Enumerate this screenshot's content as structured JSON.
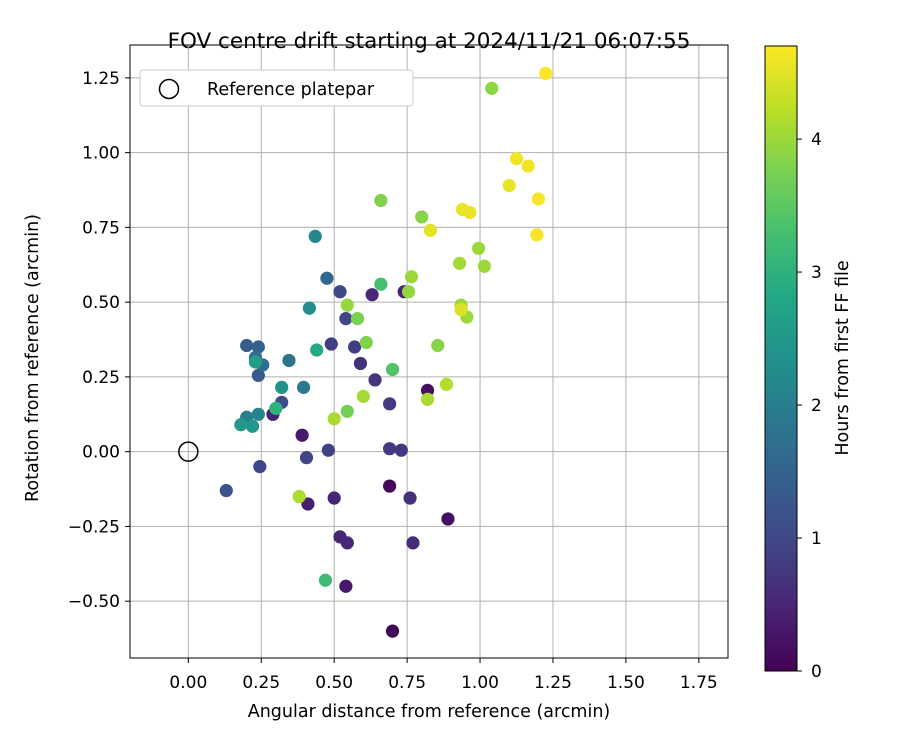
{
  "chart_data": {
    "type": "scatter",
    "title": "FOV centre drift starting at 2024/11/21 06:07:55",
    "xlabel": "Angular distance from reference (arcmin)",
    "ylabel": "Rotation from reference (arcmin)",
    "xlim": [
      -0.2,
      1.85
    ],
    "ylim": [
      -0.69,
      1.36
    ],
    "xticks": [
      0.0,
      0.25,
      0.5,
      0.75,
      1.0,
      1.25,
      1.5,
      1.75
    ],
    "xtick_labels": [
      "0.00",
      "0.25",
      "0.50",
      "0.75",
      "1.00",
      "1.25",
      "1.50",
      "1.75"
    ],
    "yticks": [
      -0.5,
      -0.25,
      0.0,
      0.25,
      0.5,
      0.75,
      1.0,
      1.25
    ],
    "ytick_labels": [
      "−0.50",
      "−0.25",
      "0.00",
      "0.25",
      "0.50",
      "0.75",
      "1.00",
      "1.25"
    ],
    "grid": true,
    "legend": {
      "position": "top-left",
      "label": "Reference platepar",
      "marker": "open-circle"
    },
    "reference_point": {
      "x": 0.0,
      "y": 0.0
    },
    "colorbar": {
      "label": "Hours from first FF file",
      "colormap": "viridis",
      "range": [
        0,
        4.7
      ],
      "ticks": [
        0,
        1,
        2,
        3,
        4
      ],
      "tick_labels": [
        "0",
        "1",
        "2",
        "3",
        "4"
      ]
    },
    "points": [
      {
        "x": 0.7,
        "y": -0.6,
        "c": 0.05
      },
      {
        "x": 0.69,
        "y": -0.115,
        "c": 0.1
      },
      {
        "x": 0.89,
        "y": -0.225,
        "c": 0.2
      },
      {
        "x": 0.82,
        "y": 0.205,
        "c": 0.2
      },
      {
        "x": 0.54,
        "y": -0.45,
        "c": 0.3
      },
      {
        "x": 0.39,
        "y": 0.055,
        "c": 0.35
      },
      {
        "x": 0.41,
        "y": -0.175,
        "c": 0.4
      },
      {
        "x": 0.29,
        "y": 0.125,
        "c": 0.45
      },
      {
        "x": 0.74,
        "y": 0.535,
        "c": 0.45
      },
      {
        "x": 0.5,
        "y": -0.155,
        "c": 0.5
      },
      {
        "x": 0.52,
        "y": -0.285,
        "c": 0.5
      },
      {
        "x": 0.545,
        "y": -0.305,
        "c": 0.55
      },
      {
        "x": 0.63,
        "y": 0.525,
        "c": 0.55
      },
      {
        "x": 0.77,
        "y": -0.305,
        "c": 0.6
      },
      {
        "x": 0.76,
        "y": -0.155,
        "c": 0.65
      },
      {
        "x": 0.59,
        "y": 0.295,
        "c": 0.65
      },
      {
        "x": 0.64,
        "y": 0.24,
        "c": 0.7
      },
      {
        "x": 0.73,
        "y": 0.005,
        "c": 0.75
      },
      {
        "x": 0.69,
        "y": 0.01,
        "c": 0.8
      },
      {
        "x": 0.69,
        "y": 0.16,
        "c": 0.8
      },
      {
        "x": 0.49,
        "y": 0.36,
        "c": 0.85
      },
      {
        "x": 0.57,
        "y": 0.35,
        "c": 0.85
      },
      {
        "x": 0.48,
        "y": 0.005,
        "c": 0.9
      },
      {
        "x": 0.405,
        "y": -0.02,
        "c": 0.95
      },
      {
        "x": 0.245,
        "y": -0.05,
        "c": 1.0
      },
      {
        "x": 0.54,
        "y": 0.445,
        "c": 1.0
      },
      {
        "x": 0.52,
        "y": 0.535,
        "c": 1.05
      },
      {
        "x": 0.32,
        "y": 0.165,
        "c": 1.1
      },
      {
        "x": 0.13,
        "y": -0.13,
        "c": 1.2
      },
      {
        "x": 0.24,
        "y": 0.255,
        "c": 1.3
      },
      {
        "x": 0.2,
        "y": 0.355,
        "c": 1.4
      },
      {
        "x": 0.24,
        "y": 0.35,
        "c": 1.45
      },
      {
        "x": 0.475,
        "y": 0.58,
        "c": 1.55
      },
      {
        "x": 0.23,
        "y": 0.315,
        "c": 1.65
      },
      {
        "x": 0.255,
        "y": 0.29,
        "c": 1.7
      },
      {
        "x": 0.345,
        "y": 0.305,
        "c": 1.8
      },
      {
        "x": 0.395,
        "y": 0.215,
        "c": 1.9
      },
      {
        "x": 0.2,
        "y": 0.115,
        "c": 2.0
      },
      {
        "x": 0.24,
        "y": 0.125,
        "c": 2.1
      },
      {
        "x": 0.435,
        "y": 0.72,
        "c": 2.2
      },
      {
        "x": 0.415,
        "y": 0.48,
        "c": 2.3
      },
      {
        "x": 0.32,
        "y": 0.215,
        "c": 2.4
      },
      {
        "x": 0.22,
        "y": 0.085,
        "c": 2.45
      },
      {
        "x": 0.18,
        "y": 0.09,
        "c": 2.5
      },
      {
        "x": 0.23,
        "y": 0.3,
        "c": 2.6
      },
      {
        "x": 0.44,
        "y": 0.34,
        "c": 2.85
      },
      {
        "x": 0.3,
        "y": 0.145,
        "c": 3.0
      },
      {
        "x": 0.47,
        "y": -0.43,
        "c": 3.2
      },
      {
        "x": 0.66,
        "y": 0.56,
        "c": 3.3
      },
      {
        "x": 0.7,
        "y": 0.275,
        "c": 3.4
      },
      {
        "x": 0.545,
        "y": 0.135,
        "c": 3.7
      },
      {
        "x": 0.58,
        "y": 0.445,
        "c": 3.75
      },
      {
        "x": 0.61,
        "y": 0.365,
        "c": 3.8
      },
      {
        "x": 0.66,
        "y": 0.84,
        "c": 3.8
      },
      {
        "x": 0.8,
        "y": 0.785,
        "c": 3.85
      },
      {
        "x": 0.855,
        "y": 0.355,
        "c": 3.85
      },
      {
        "x": 1.04,
        "y": 1.215,
        "c": 3.9
      },
      {
        "x": 0.545,
        "y": 0.49,
        "c": 3.95
      },
      {
        "x": 0.755,
        "y": 0.535,
        "c": 3.95
      },
      {
        "x": 0.765,
        "y": 0.585,
        "c": 4.0
      },
      {
        "x": 0.955,
        "y": 0.45,
        "c": 4.0
      },
      {
        "x": 0.995,
        "y": 0.68,
        "c": 4.0
      },
      {
        "x": 1.015,
        "y": 0.62,
        "c": 4.0
      },
      {
        "x": 0.935,
        "y": 0.49,
        "c": 4.0
      },
      {
        "x": 0.93,
        "y": 0.63,
        "c": 4.05
      },
      {
        "x": 0.6,
        "y": 0.185,
        "c": 4.05
      },
      {
        "x": 0.38,
        "y": -0.15,
        "c": 4.1
      },
      {
        "x": 0.5,
        "y": 0.11,
        "c": 4.1
      },
      {
        "x": 0.82,
        "y": 0.175,
        "c": 4.1
      },
      {
        "x": 0.885,
        "y": 0.225,
        "c": 4.15
      },
      {
        "x": 0.935,
        "y": 0.475,
        "c": 4.45
      },
      {
        "x": 0.83,
        "y": 0.74,
        "c": 4.5
      },
      {
        "x": 0.94,
        "y": 0.81,
        "c": 4.55
      },
      {
        "x": 0.965,
        "y": 0.8,
        "c": 4.55
      },
      {
        "x": 1.1,
        "y": 0.89,
        "c": 4.55
      },
      {
        "x": 1.125,
        "y": 0.98,
        "c": 4.6
      },
      {
        "x": 1.165,
        "y": 0.955,
        "c": 4.6
      },
      {
        "x": 1.2,
        "y": 0.845,
        "c": 4.65
      },
      {
        "x": 1.195,
        "y": 0.725,
        "c": 4.65
      },
      {
        "x": 1.225,
        "y": 1.265,
        "c": 4.7
      }
    ]
  }
}
